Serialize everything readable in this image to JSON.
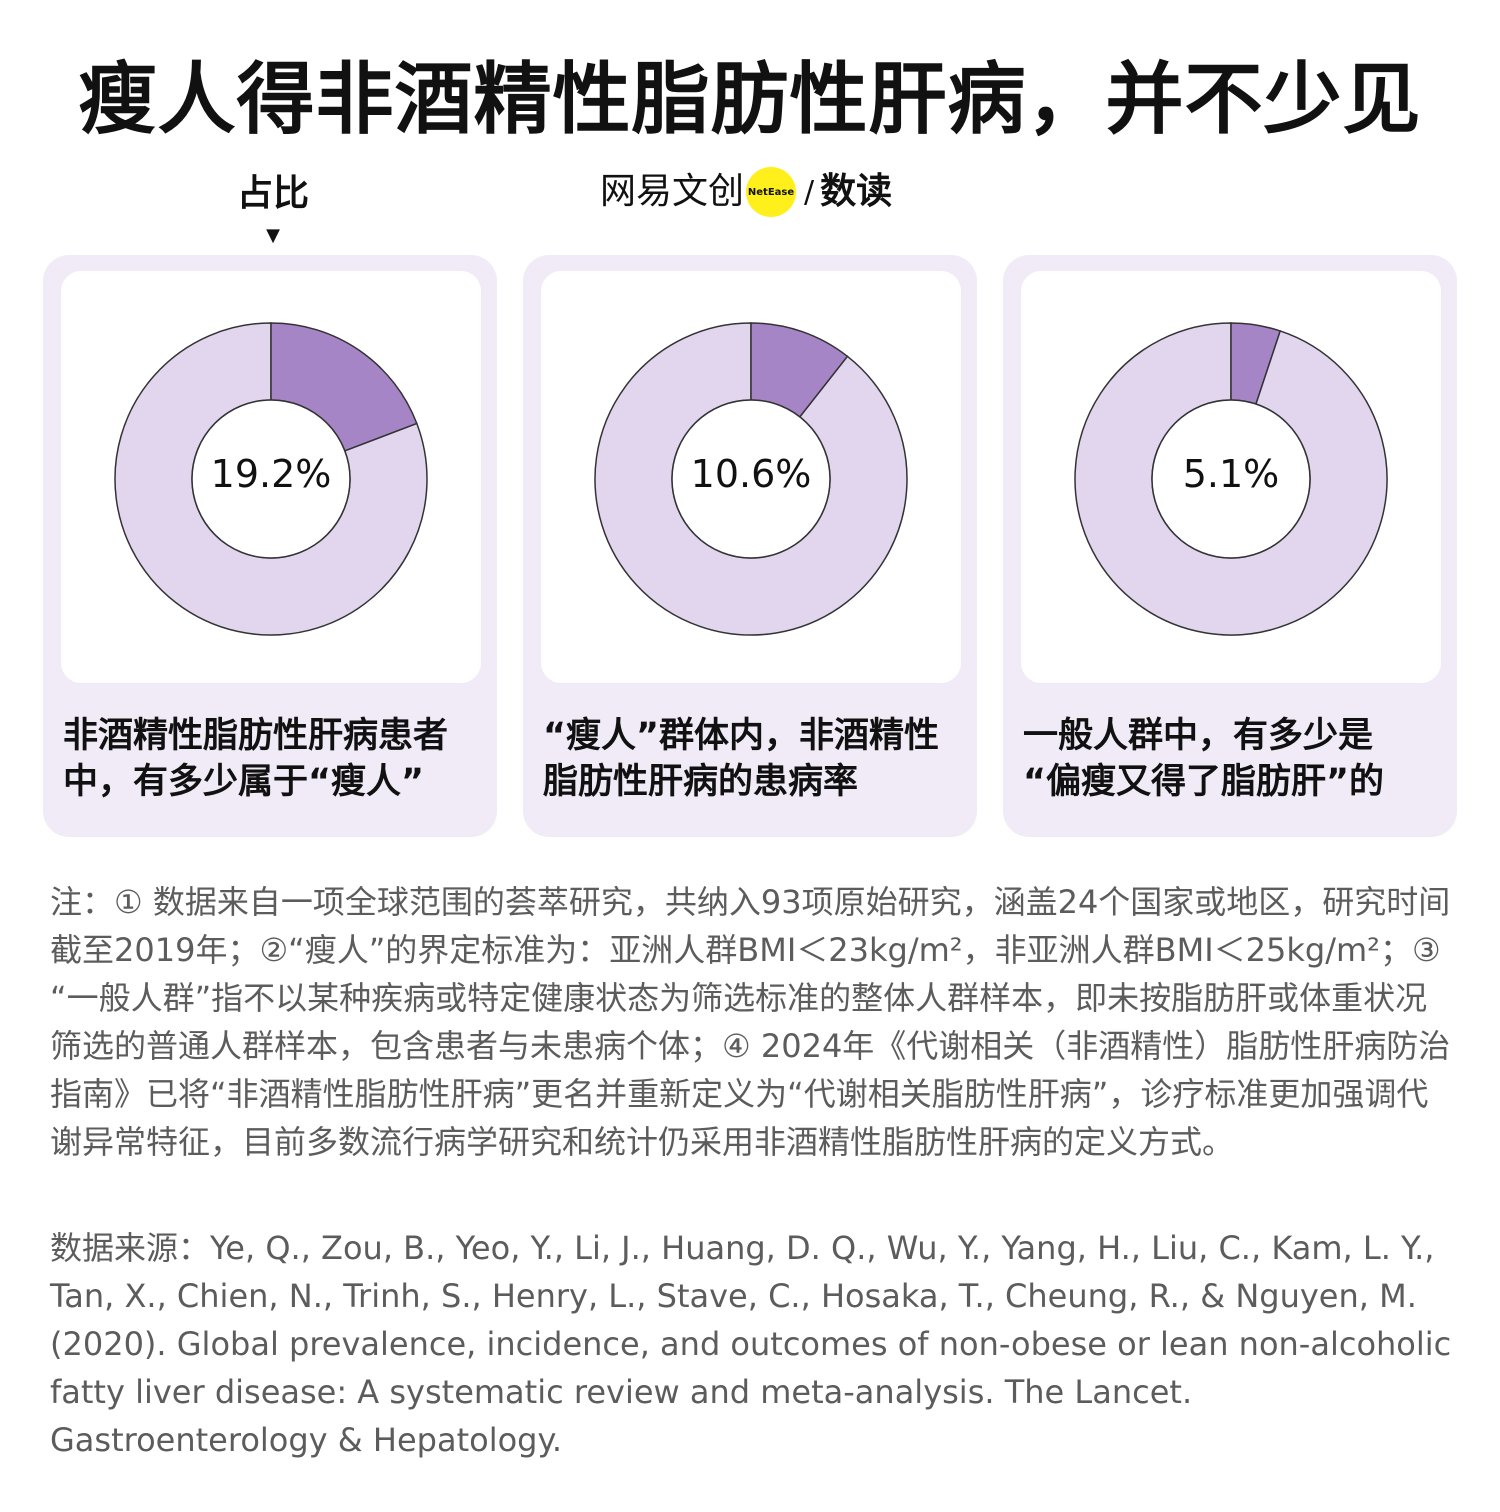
{
  "title": "瘦人得非酒精性脂肪性肝病，并不少见",
  "pointer_label": "占比",
  "brand": {
    "name": "网易文创",
    "badge": "NetEase",
    "slash": "/",
    "sub": "数读"
  },
  "colors": {
    "card_bg": "#f0ebf7",
    "highlight_slice": "#a585c6",
    "rest_slice": "#e2d6ef",
    "ring_outline": "#333333"
  },
  "chart_data": [
    {
      "type": "pie",
      "subtype": "donut",
      "value_percent": 19.2,
      "label": "19.2%",
      "caption_lines": [
        "非酒精性脂肪性肝病患者",
        "中，有多少属于“瘦人”"
      ]
    },
    {
      "type": "pie",
      "subtype": "donut",
      "value_percent": 10.6,
      "label": "10.6%",
      "caption_lines": [
        "“瘦人”群体内，非酒精性",
        "脂肪性肝病的患病率"
      ]
    },
    {
      "type": "pie",
      "subtype": "donut",
      "value_percent": 5.1,
      "label": "5.1%",
      "caption_lines": [
        "一般人群中，有多少是",
        "“偏瘦又得了脂肪肝”的"
      ]
    }
  ],
  "notes": "注：① 数据来自一项全球范围的荟萃研究，共纳入93项原始研究，涵盖24个国家或地区，研究时间截至2019年；②“瘦人”的界定标准为：亚洲人群BMI＜23kg/m²，非亚洲人群BMI＜25kg/m²；③ “一般人群”指不以某种疾病或特定健康状态为筛选标准的整体人群样本，即未按脂肪肝或体重状况筛选的普通人群样本，包含患者与未患病个体；④ 2024年《代谢相关（非酒精性）脂肪性肝病防治指南》已将“非酒精性脂肪性肝病”更名并重新定义为“代谢相关脂肪性肝病”，诊疗标准更加强调代谢异常特征，目前多数流行病学研究和统计仍采用非酒精性脂肪性肝病的定义方式。",
  "source": "数据来源：Ye, Q., Zou, B., Yeo, Y., Li, J., Huang, D. Q., Wu, Y., Yang, H., Liu, C., Kam, L. Y., Tan, X., Chien, N., Trinh, S., Henry, L., Stave, C., Hosaka, T., Cheung, R., & Nguyen, M. (2020). Global prevalence, incidence, and outcomes of non-obese or lean non-alcoholic fatty liver disease: A systematic review and meta-analysis. The Lancet. Gastroenterology & Hepatology."
}
